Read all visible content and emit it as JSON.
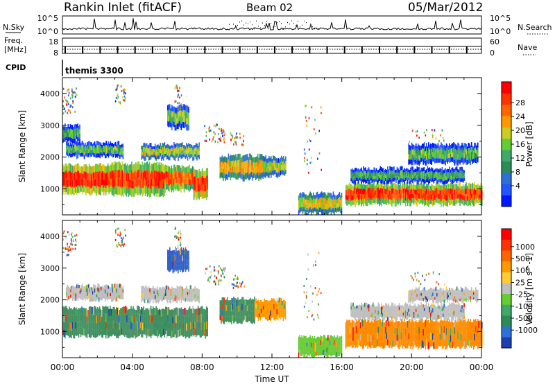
{
  "header": {
    "title": "Rankin Inlet (fitACF)",
    "beam": "Beam 02",
    "date": "05/Mar/2012"
  },
  "nsky_panel": {
    "left_label": "N.Sky",
    "left_ticks": [
      "10^5",
      "10^0"
    ],
    "right_ticks": [
      "10^5",
      "10^0"
    ],
    "right_label": "N.Search"
  },
  "freq_panel": {
    "label_line1": "Freq.",
    "label_line2": "[MHz]",
    "left_ticks": [
      "18",
      "8"
    ],
    "right_ticks": [
      "60",
      "0"
    ],
    "right_label": "Nave"
  },
  "cpid": {
    "label": "CPID",
    "value": "themis 3300"
  },
  "chart_data": [
    {
      "type": "heatmap",
      "parameter": "power",
      "x_range_hours": [
        0,
        24
      ],
      "ylim": [
        180,
        4500
      ],
      "ylabel": "Slant Range [km]",
      "yticks": [
        1000,
        2000,
        3000,
        4000
      ],
      "colorbar": {
        "label": "Power [dB]",
        "ticks": [
          "28",
          "24",
          "20",
          "16",
          "12",
          "8",
          "4"
        ],
        "colors": [
          "#0018ff",
          "#2255ff",
          "#2f6fd8",
          "#2e8b57",
          "#3fa86a",
          "#66cc33",
          "#cccc22",
          "#ff9900",
          "#ff6600",
          "#ff3300",
          "#ff0000"
        ]
      },
      "bands": [
        {
          "t0": 0.0,
          "t1": 2.8,
          "r0": 850,
          "r1": 1750,
          "level": 0.9
        },
        {
          "t0": 2.8,
          "t1": 5.8,
          "r0": 800,
          "r1": 1800,
          "level": 0.85
        },
        {
          "t0": 5.8,
          "t1": 7.5,
          "r0": 950,
          "r1": 1700,
          "level": 0.8
        },
        {
          "t0": 7.5,
          "t1": 8.3,
          "r0": 700,
          "r1": 1600,
          "level": 0.9
        },
        {
          "t0": 0.2,
          "t1": 3.5,
          "r0": 2000,
          "r1": 2450,
          "level": 0.45
        },
        {
          "t0": 4.5,
          "t1": 7.8,
          "r0": 1950,
          "r1": 2400,
          "level": 0.55
        },
        {
          "t0": 0.0,
          "t1": 1.0,
          "r0": 2500,
          "r1": 3000,
          "level": 0.4
        },
        {
          "t0": 6.0,
          "t1": 7.2,
          "r0": 2900,
          "r1": 3600,
          "level": 0.5
        },
        {
          "t0": 9.0,
          "t1": 11.5,
          "r0": 1300,
          "r1": 2050,
          "level": 0.65
        },
        {
          "t0": 11.5,
          "t1": 12.8,
          "r0": 1400,
          "r1": 2000,
          "level": 0.55
        },
        {
          "t0": 13.5,
          "t1": 16.0,
          "r0": 220,
          "r1": 850,
          "level": 0.6
        },
        {
          "t0": 16.2,
          "t1": 24.0,
          "r0": 500,
          "r1": 1150,
          "level": 0.85
        },
        {
          "t0": 16.5,
          "t1": 23.0,
          "r0": 1200,
          "r1": 1650,
          "level": 0.4
        },
        {
          "t0": 19.8,
          "t1": 23.8,
          "r0": 1800,
          "r1": 2400,
          "level": 0.45
        }
      ],
      "scatter_clusters": [
        {
          "t": 0.4,
          "r": 3800,
          "n": 45,
          "spread_t": 0.4,
          "spread_r": 400
        },
        {
          "t": 3.3,
          "r": 4000,
          "n": 30,
          "spread_t": 0.3,
          "spread_r": 300
        },
        {
          "t": 6.6,
          "r": 3900,
          "n": 25,
          "spread_t": 0.2,
          "spread_r": 400
        },
        {
          "t": 8.7,
          "r": 2800,
          "n": 45,
          "spread_t": 0.6,
          "spread_r": 300
        },
        {
          "t": 10.0,
          "r": 2600,
          "n": 25,
          "spread_t": 0.4,
          "spread_r": 200
        },
        {
          "t": 14.3,
          "r": 2500,
          "n": 30,
          "spread_t": 0.5,
          "spread_r": 1200
        },
        {
          "t": 21.0,
          "r": 2700,
          "n": 20,
          "spread_t": 1.2,
          "spread_r": 200
        }
      ]
    },
    {
      "type": "heatmap",
      "parameter": "velocity",
      "x_range_hours": [
        0,
        24
      ],
      "xticks": [
        "00:00",
        "04:00",
        "08:00",
        "12:00",
        "16:00",
        "20:00",
        "00:00"
      ],
      "xlabel": "Time UT",
      "ylim": [
        180,
        4500
      ],
      "ylabel": "Slant Range [km]",
      "yticks": [
        1000,
        2000,
        3000,
        4000
      ],
      "colorbar": {
        "label": "Velocity [m s^-1]",
        "ticks": [
          "1000",
          "500",
          "100",
          "25",
          "-25",
          "-100",
          "-500",
          "-1000"
        ],
        "colors": [
          "#1c3fb0",
          "#2f6fd8",
          "#2e8b57",
          "#3fa86a",
          "#66cc33",
          "#bebebe",
          "#ffcc33",
          "#ff9900",
          "#ff6600",
          "#ff3300",
          "#ff0000"
        ]
      },
      "bands": [
        {
          "t0": 0.0,
          "t1": 8.3,
          "r0": 850,
          "r1": 1750,
          "level": 0.25,
          "color": "#3f8f5f"
        },
        {
          "t0": 0.2,
          "t1": 3.5,
          "r0": 2000,
          "r1": 2450,
          "level": 0.5,
          "color": "#bebebe"
        },
        {
          "t0": 4.5,
          "t1": 7.8,
          "r0": 1950,
          "r1": 2400,
          "level": 0.5,
          "color": "#bebebe"
        },
        {
          "t0": 6.0,
          "t1": 7.2,
          "r0": 2900,
          "r1": 3600,
          "level": 0.1,
          "color": "#2f5fc8"
        },
        {
          "t0": 9.0,
          "t1": 11.0,
          "r0": 1300,
          "r1": 2050,
          "level": 0.3,
          "color": "#3f8f5f"
        },
        {
          "t0": 11.0,
          "t1": 12.8,
          "r0": 1400,
          "r1": 2000,
          "level": 0.7,
          "color": "#ff9900"
        },
        {
          "t0": 13.5,
          "t1": 16.0,
          "r0": 220,
          "r1": 850,
          "level": 0.35,
          "color": "#66cc33"
        },
        {
          "t0": 16.2,
          "t1": 24.0,
          "r0": 500,
          "r1": 1350,
          "level": 0.75,
          "color": "#ff8a00"
        },
        {
          "t0": 16.5,
          "t1": 23.0,
          "r0": 1400,
          "r1": 1850,
          "level": 0.5,
          "color": "#bebebe"
        },
        {
          "t0": 19.8,
          "t1": 23.8,
          "r0": 1950,
          "r1": 2350,
          "level": 0.5,
          "color": "#bebebe"
        }
      ]
    }
  ]
}
